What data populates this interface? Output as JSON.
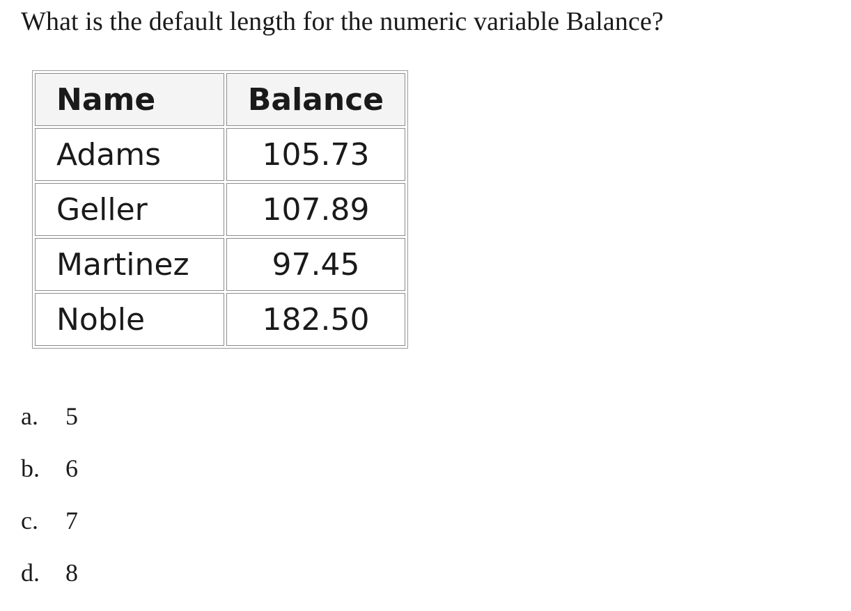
{
  "question": "What is the default length for the numeric variable Balance?",
  "table": {
    "headers": [
      "Name",
      "Balance"
    ],
    "rows": [
      [
        "Adams",
        "105.73"
      ],
      [
        "Geller",
        "107.89"
      ],
      [
        "Martinez",
        "97.45"
      ],
      [
        "Noble",
        "182.50"
      ]
    ]
  },
  "options": [
    {
      "letter": "a.",
      "value": "5"
    },
    {
      "letter": "b.",
      "value": "6"
    },
    {
      "letter": "c.",
      "value": "7"
    },
    {
      "letter": "d.",
      "value": "8"
    }
  ]
}
